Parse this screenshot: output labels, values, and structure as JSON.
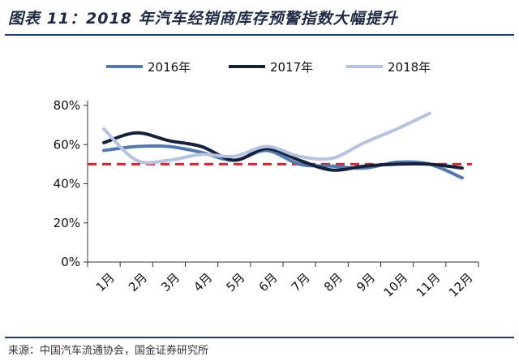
{
  "header": {
    "title": "图表 11：2018 年汽车经销商库存预警指数大幅提升"
  },
  "footer": {
    "source": "来源：中国汽车流通协会，国金证券研究所"
  },
  "chart_data": {
    "type": "line",
    "title": "图表 11：2018 年汽车经销商库存预警指数大幅提升",
    "categories": [
      "1月",
      "2月",
      "3月",
      "4月",
      "5月",
      "6月",
      "7月",
      "8月",
      "9月",
      "10月",
      "11月",
      "12月"
    ],
    "yticks": [
      "0%",
      "20%",
      "40%",
      "60%",
      "80%"
    ],
    "ylim": [
      0,
      80
    ],
    "grid": false,
    "legend_position": "top",
    "reference_line": {
      "value": 50,
      "color": "#d9232d",
      "style": "dashed"
    },
    "series": [
      {
        "name": "2016年",
        "color": "#4f79b0",
        "values": [
          57,
          59,
          59,
          56,
          52,
          57,
          50,
          49,
          48,
          51,
          50,
          43
        ]
      },
      {
        "name": "2017年",
        "color": "#13213d",
        "values": [
          61,
          66,
          62,
          59,
          52,
          58,
          52,
          47,
          49,
          50,
          50,
          48
        ]
      },
      {
        "name": "2018年",
        "color": "#b5c3e0",
        "values": [
          68,
          52,
          52,
          55,
          54,
          59,
          54,
          53,
          61,
          68,
          76,
          null
        ]
      }
    ]
  }
}
